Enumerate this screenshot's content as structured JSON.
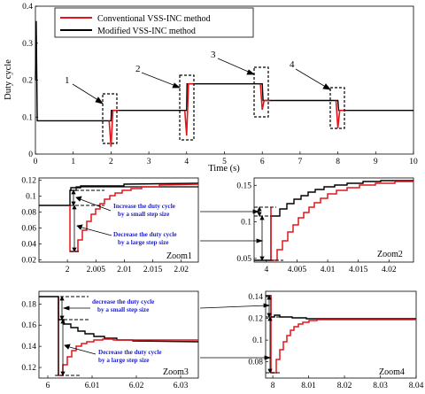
{
  "chart_data": [
    {
      "type": "line",
      "ylabel": "Duty cycle",
      "xlabel": "Time (s)",
      "xlim": [
        0,
        10
      ],
      "ylim": [
        0,
        0.4
      ],
      "x_ticks": [
        "0",
        "1",
        "2",
        "3",
        "4",
        "5",
        "6",
        "7",
        "8",
        "9",
        "10"
      ],
      "y_ticks": [
        "0",
        "0.1",
        "0.2",
        "0.3",
        "0.4"
      ],
      "legend_position": "top-left",
      "legend": [
        "Conventional VSS-INC method",
        "Modified VSS-INC method"
      ],
      "colors": {
        "conventional": "#e3151b",
        "modified": "#000000"
      },
      "series": [
        {
          "name": "Modified VSS-INC method",
          "x": [
            0,
            0.02,
            0.05,
            0.1,
            2,
            2.01,
            2.2,
            4,
            4.01,
            4.15,
            6,
            6.02,
            6.15,
            8,
            8.02,
            8.15,
            10
          ],
          "y": [
            0.2,
            0.36,
            0.09,
            0.09,
            0.09,
            0.118,
            0.118,
            0.118,
            0.19,
            0.19,
            0.19,
            0.145,
            0.145,
            0.145,
            0.118,
            0.118,
            0.118
          ]
        },
        {
          "name": "Conventional VSS-INC method",
          "x": [
            1.95,
            2.0,
            2.05,
            2.2,
            3.95,
            4.0,
            4.05,
            4.2,
            5.95,
            6.0,
            6.05,
            6.2,
            7.95,
            8.0,
            8.05,
            8.2
          ],
          "y": [
            0.09,
            0.02,
            0.118,
            0.118,
            0.118,
            0.05,
            0.19,
            0.19,
            0.19,
            0.12,
            0.145,
            0.145,
            0.145,
            0.07,
            0.118,
            0.118
          ]
        }
      ],
      "callouts": [
        "1",
        "2",
        "3",
        "4"
      ]
    },
    {
      "type": "line",
      "title_tag": "Zoom1",
      "xlim": [
        1.995,
        2.023
      ],
      "ylim": [
        0.017,
        0.123
      ],
      "x_ticks": [
        "2",
        "2.005",
        "2.01",
        "2.015",
        "2.02"
      ],
      "y_ticks": [
        "0.02",
        "0.04",
        "0.06",
        "0.08",
        "0.1",
        "0.12"
      ],
      "annotations": [
        "Increase the duty cycle",
        "by a small step size",
        "Decrease the duty cycle",
        "by a large step size"
      ]
    },
    {
      "type": "line",
      "title_tag": "Zoom2",
      "xlim": [
        3.998,
        4.024
      ],
      "ylim": [
        0.045,
        0.16
      ],
      "x_ticks": [
        "4",
        "4.005",
        "4.01",
        "4.015",
        "4.02"
      ],
      "y_ticks": [
        "0.05",
        "0.1",
        "0.15"
      ]
    },
    {
      "type": "line",
      "title_tag": "Zoom3",
      "xlim": [
        5.998,
        6.034
      ],
      "ylim": [
        0.11,
        0.192
      ],
      "x_ticks": [
        "6",
        "6.01",
        "6.02",
        "6.03"
      ],
      "y_ticks": [
        "0.12",
        "0.14",
        "0.16",
        "0.18"
      ],
      "annotations": [
        "decrease the duty cycle",
        "by a small step size",
        "Decrease the duty cycle",
        "by a large step size"
      ]
    },
    {
      "type": "line",
      "title_tag": "Zoom4",
      "xlim": [
        7.998,
        8.04
      ],
      "ylim": [
        0.065,
        0.145
      ],
      "x_ticks": [
        "8",
        "8.01",
        "8.02",
        "8.03",
        "8.04"
      ],
      "y_ticks": [
        "0.08",
        "0.1",
        "0.12",
        "0.14"
      ]
    }
  ]
}
